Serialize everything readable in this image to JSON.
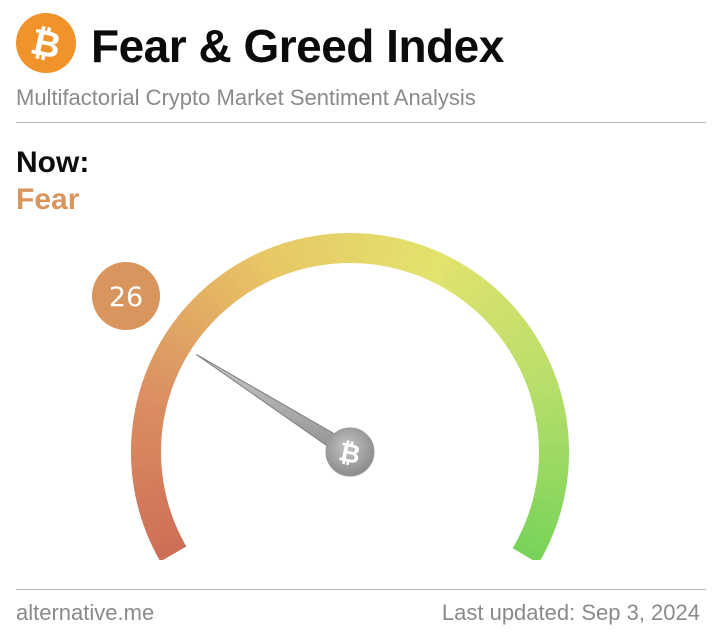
{
  "header": {
    "title": "Fear & Greed Index",
    "subtitle": "Multifactorial Crypto Market Sentiment Analysis",
    "logo_icon": "bitcoin-icon",
    "logo_symbol": "₿",
    "logo_color": "#f0932b"
  },
  "now": {
    "label": "Now:",
    "classification": "Fear",
    "classification_color": "#d9955e"
  },
  "gauge": {
    "value": 26,
    "min": 0,
    "max": 100,
    "badge_color": "#d9955e",
    "needle_icon": "bitcoin-icon",
    "needle_symbol": "₿",
    "colors": [
      "#cd6e57",
      "#dc9163",
      "#e8c665",
      "#e3e36d",
      "#b6de6a",
      "#78d35a"
    ]
  },
  "footer": {
    "source": "alternative.me",
    "last_updated": "Last updated: Sep 3, 2024"
  }
}
